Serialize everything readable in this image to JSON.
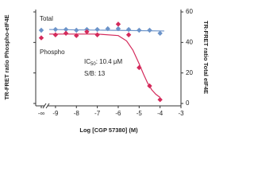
{
  "chart_data": {
    "type": "scatter",
    "x_title": "Log [CGP 57380] (M)",
    "y_title": "TR-FRET ratio Phospho-eIF4E",
    "y2_title": "TR-FRET ratio Total eIF4E",
    "xlim": [
      -9.3,
      -3
    ],
    "xticks": [
      -9,
      -8,
      -7,
      -6,
      -5,
      -4,
      -3
    ],
    "x_control_label": "-∞",
    "y2lim": [
      0,
      60
    ],
    "y2ticks": [
      0,
      20,
      40,
      60
    ],
    "annotation": {
      "prefix": "IC",
      "sub": "50",
      "rest": ": 10.4 μM",
      "sb": "S/B: 13"
    },
    "series": [
      {
        "name": "Total",
        "color": "#6b93c9",
        "marker": "diamond",
        "control": 48,
        "x": [
          -9,
          -8.5,
          -8,
          -7.5,
          -7,
          -6.5,
          -6,
          -5.5,
          -5,
          -4.5,
          -4
        ],
        "values": [
          48.5,
          48.5,
          48,
          48.5,
          48.5,
          49,
          49,
          48.5,
          48,
          48,
          46
        ],
        "fit_x": [
          -9.3,
          -3.8
        ],
        "fit_values": [
          48.5,
          47.5
        ]
      },
      {
        "name": "Phospho",
        "color": "#d42a5b",
        "marker": "diamond",
        "control": 43,
        "x": [
          -9,
          -8.5,
          -8,
          -7.5,
          -7,
          -6,
          -5.5,
          -5,
          -4.5,
          -4
        ],
        "values": [
          45,
          46,
          44.5,
          47,
          45,
          52,
          45,
          23.5,
          11.5,
          2.5
        ],
        "fit_x": [
          -9.3,
          -7,
          -6,
          -5.6,
          -5.3,
          -5,
          -4.8,
          -4.6,
          -4.4,
          -4.2,
          -4
        ],
        "fit_values": [
          45.5,
          45.5,
          44.5,
          41,
          35,
          26,
          19.5,
          13.5,
          9,
          6,
          4
        ]
      }
    ]
  }
}
